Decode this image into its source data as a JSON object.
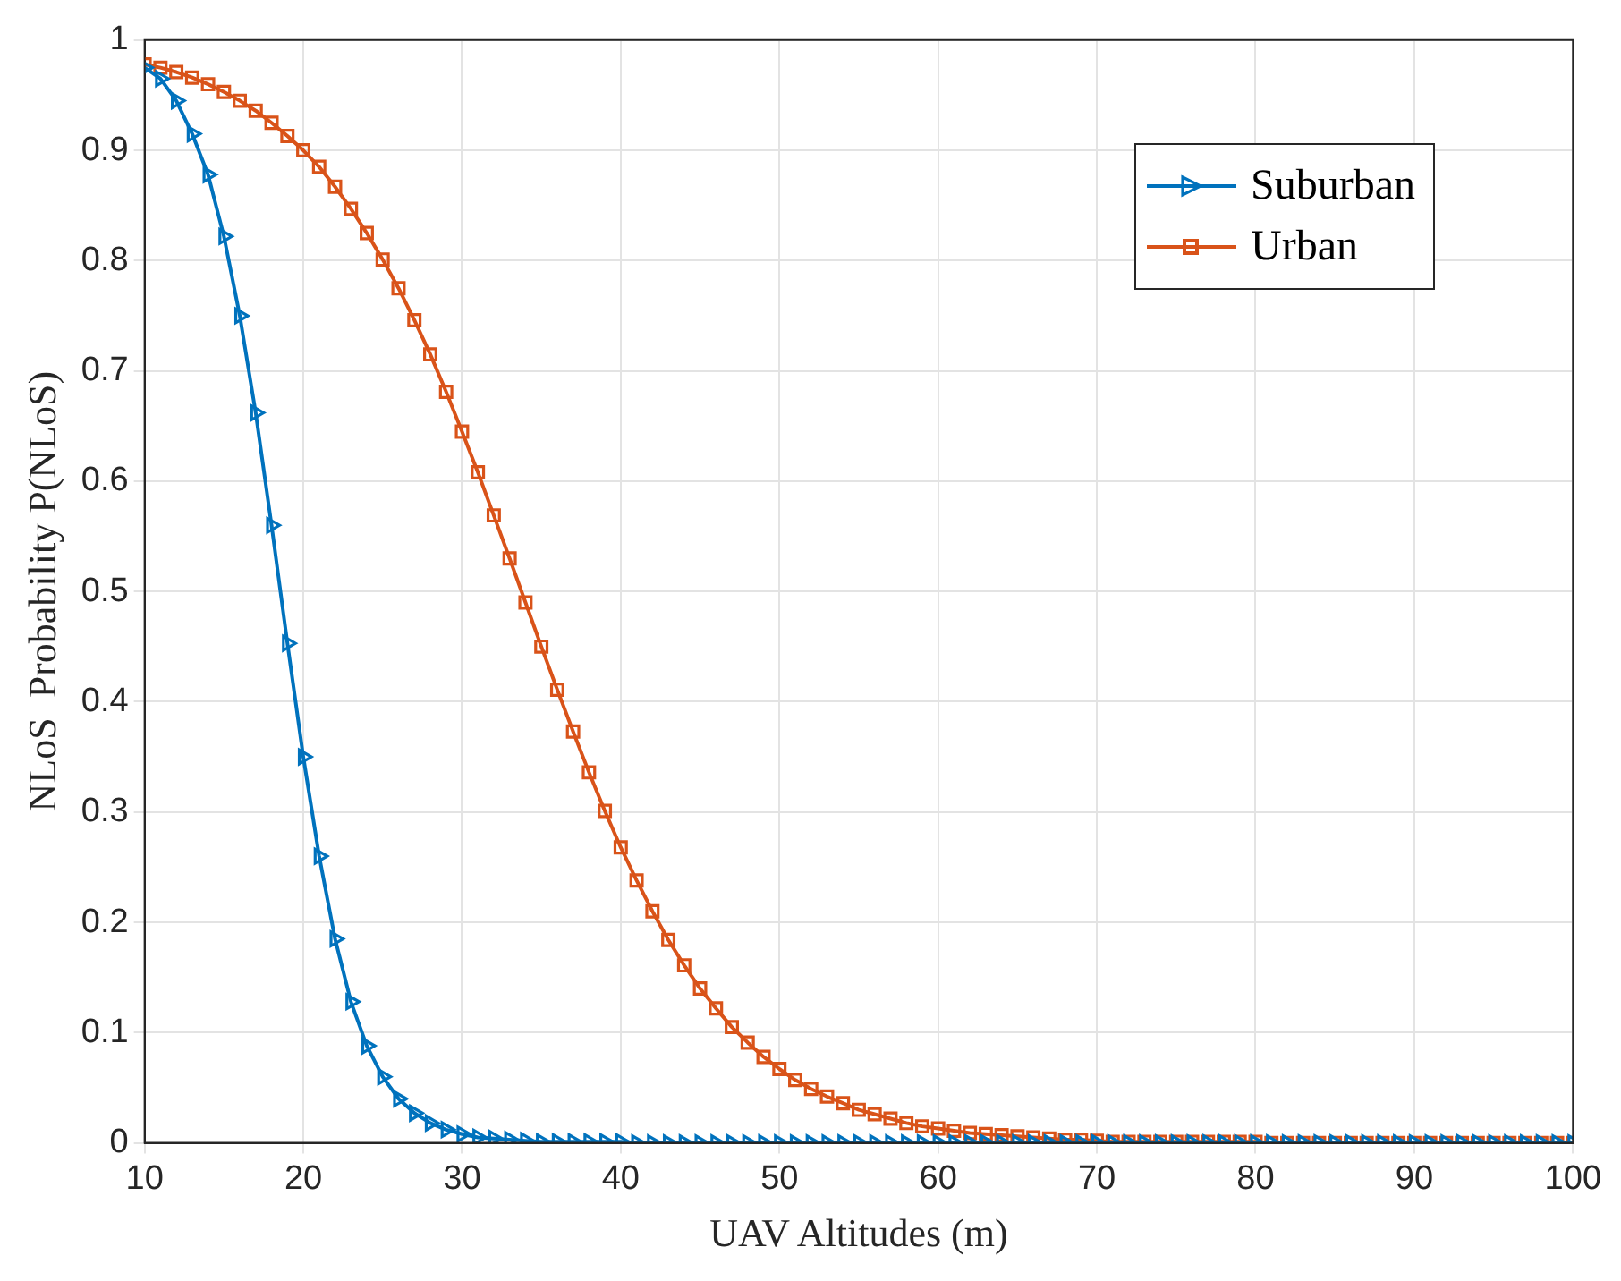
{
  "chart_data": {
    "type": "line",
    "xlabel": "UAV Altitudes (m)",
    "ylabel": "NLoS  Probability P(NLoS)",
    "x": [
      10,
      11,
      12,
      13,
      14,
      15,
      16,
      17,
      18,
      19,
      20,
      21,
      22,
      23,
      24,
      25,
      26,
      27,
      28,
      29,
      30,
      31,
      32,
      33,
      34,
      35,
      36,
      37,
      38,
      39,
      40,
      41,
      42,
      43,
      44,
      45,
      46,
      47,
      48,
      49,
      50,
      51,
      52,
      53,
      54,
      55,
      56,
      57,
      58,
      59,
      60,
      61,
      62,
      63,
      64,
      65,
      66,
      67,
      68,
      69,
      70,
      71,
      72,
      73,
      74,
      75,
      76,
      77,
      78,
      79,
      80,
      81,
      82,
      83,
      84,
      85,
      86,
      87,
      88,
      89,
      90,
      91,
      92,
      93,
      94,
      95,
      96,
      97,
      98,
      99,
      100
    ],
    "series": [
      {
        "name": "Suburban",
        "color": "#0072bd",
        "marker": "triangle",
        "values": [
          0.975,
          0.965,
          0.945,
          0.915,
          0.878,
          0.822,
          0.75,
          0.662,
          0.56,
          0.453,
          0.35,
          0.26,
          0.185,
          0.128,
          0.088,
          0.06,
          0.04,
          0.027,
          0.018,
          0.012,
          0.008,
          0.005,
          0.004,
          0.003,
          0.002,
          0.001,
          0.001,
          0.001,
          0.001,
          0.001,
          0.001,
          0,
          0,
          0,
          0,
          0,
          0,
          0,
          0,
          0,
          0,
          0,
          0,
          0,
          0,
          0,
          0,
          0,
          0,
          0,
          0,
          0,
          0,
          0,
          0,
          0,
          0,
          0,
          0,
          0,
          0,
          0,
          0,
          0,
          0,
          0,
          0,
          0,
          0,
          0,
          0,
          0,
          0,
          0,
          0,
          0,
          0,
          0,
          0,
          0,
          0,
          0,
          0,
          0,
          0,
          0,
          0,
          0,
          0,
          0,
          0
        ]
      },
      {
        "name": "Urban",
        "color": "#d95319",
        "marker": "square",
        "values": [
          0.978,
          0.975,
          0.971,
          0.966,
          0.96,
          0.953,
          0.945,
          0.936,
          0.925,
          0.913,
          0.9,
          0.885,
          0.867,
          0.847,
          0.825,
          0.801,
          0.775,
          0.746,
          0.715,
          0.681,
          0.645,
          0.608,
          0.569,
          0.53,
          0.49,
          0.45,
          0.411,
          0.373,
          0.336,
          0.301,
          0.268,
          0.238,
          0.21,
          0.184,
          0.161,
          0.14,
          0.122,
          0.105,
          0.091,
          0.078,
          0.067,
          0.057,
          0.049,
          0.042,
          0.036,
          0.03,
          0.026,
          0.022,
          0.018,
          0.015,
          0.013,
          0.011,
          0.009,
          0.008,
          0.007,
          0.006,
          0.005,
          0.004,
          0.003,
          0.003,
          0.002,
          0.001,
          0.001,
          0.001,
          0.001,
          0.001,
          0.001,
          0.001,
          0.001,
          0.001,
          0.001,
          0,
          0,
          0,
          0,
          0,
          0,
          0,
          0,
          0,
          0,
          0,
          0,
          0,
          0,
          0,
          0,
          0,
          0,
          0,
          0
        ]
      }
    ],
    "xlim": [
      10,
      100
    ],
    "xticks": [
      10,
      20,
      30,
      40,
      50,
      60,
      70,
      80,
      90,
      100
    ],
    "ylim": [
      0,
      1
    ],
    "yticks": [
      0,
      0.1,
      0.2,
      0.3,
      0.4,
      0.5,
      0.6,
      0.7,
      0.8,
      0.9,
      1
    ],
    "grid": true,
    "legend": "top right",
    "line_style": "solid"
  }
}
